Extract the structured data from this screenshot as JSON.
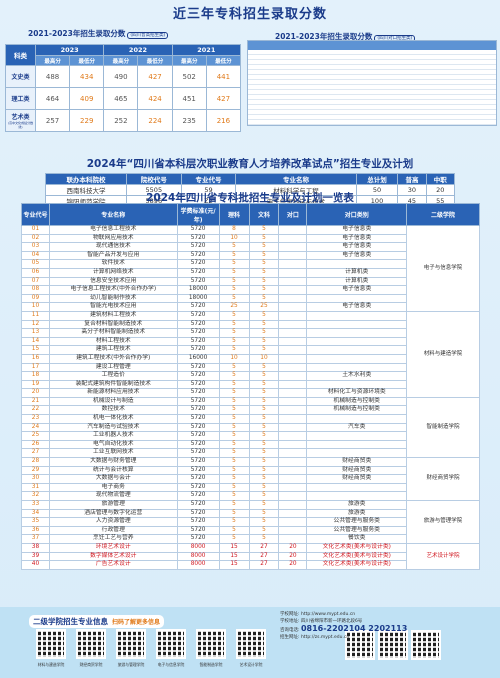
{
  "header": {
    "main_title": "近三年专科招生录取分数",
    "left_sub": "2021-2023年招生录取分数",
    "left_tag": "(四川普高招生类)",
    "right_sub": "2021-2023年招生录取分数",
    "right_tag": "(四川对口招生类)"
  },
  "scores": {
    "col_subject": "科类",
    "years": [
      "2023",
      "2022",
      "2021"
    ],
    "sub_headers": [
      "最高分",
      "最低分",
      "最高分",
      "最低分",
      "最高分",
      "最低分"
    ],
    "rows": [
      {
        "label": "文史类",
        "note": "",
        "values": [
          "488",
          "434",
          "490",
          "427",
          "502",
          "441"
        ]
      },
      {
        "label": "理工类",
        "note": "",
        "values": [
          "464",
          "409",
          "465",
          "424",
          "451",
          "427"
        ]
      },
      {
        "label": "艺术类",
        "note": "(高中文化成绩分数线)",
        "values": [
          "257",
          "229",
          "252",
          "224",
          "235",
          "216"
        ]
      }
    ]
  },
  "pilot": {
    "section_title": "2024年“四川省本科层次职业教育人才培养改革试点”招生专业及计划",
    "headers": [
      "联办本科院校",
      "院校代号",
      "专业代号",
      "专业名称",
      "总计划",
      "普高",
      "中职"
    ],
    "rows": [
      [
        "西南科技大学",
        "5505",
        "59",
        "材料科学与工程",
        "50",
        "30",
        "20"
      ],
      [
        "锦阳师范学院",
        "5896",
        "Z2",
        "电子信息科学与技术",
        "100",
        "45",
        "55"
      ]
    ]
  },
  "plan": {
    "section_title": "2024年四川省专科批招生专业及计划一览表",
    "headers": [
      "专业代号",
      "专业名称",
      "学费标准(元/年)",
      "理科",
      "文科",
      "对口",
      "对口类别",
      "二级学院"
    ],
    "rows": [
      [
        "01",
        "电子信息工程技术",
        "5720",
        "8",
        "5",
        "",
        "电子信息类"
      ],
      [
        "02",
        "物联网应用技术",
        "5720",
        "10",
        "5",
        "",
        "电子信息类"
      ],
      [
        "03",
        "现代通信技术",
        "5720",
        "5",
        "5",
        "",
        "电子信息类"
      ],
      [
        "04",
        "智能产品开发与应用",
        "5720",
        "5",
        "5",
        "",
        "电子信息类"
      ],
      [
        "05",
        "软件技术",
        "5720",
        "5",
        "5",
        "",
        ""
      ],
      [
        "06",
        "计算机网络技术",
        "5720",
        "5",
        "5",
        "",
        "计算机类"
      ],
      [
        "07",
        "信息安全技术应用",
        "5720",
        "5",
        "5",
        "",
        "计算机类"
      ],
      [
        "08",
        "电子信息工程技术(中外合作办学)",
        "18000",
        "5",
        "5",
        "",
        "电子信息类"
      ],
      [
        "09",
        "幼儿智能制作技术",
        "18000",
        "5",
        "5",
        "",
        ""
      ],
      [
        "10",
        "智能光电技术应用",
        "5720",
        "25",
        "25",
        "",
        "电子信息类"
      ],
      [
        "11",
        "建筑材料工程技术",
        "5720",
        "5",
        "5",
        "",
        ""
      ],
      [
        "12",
        "复合材料智能制造技术",
        "5720",
        "5",
        "5",
        "",
        ""
      ],
      [
        "13",
        "高分子材料智能制造技术",
        "5720",
        "5",
        "5",
        "",
        ""
      ],
      [
        "14",
        "材料工程技术",
        "5720",
        "5",
        "5",
        "",
        ""
      ],
      [
        "15",
        "建筑工程技术",
        "5720",
        "5",
        "5",
        "",
        ""
      ],
      [
        "16",
        "建筑工程技术(中外合作办学)",
        "16000",
        "10",
        "10",
        "",
        ""
      ],
      [
        "17",
        "建设工程管理",
        "5720",
        "5",
        "5",
        "",
        ""
      ],
      [
        "18",
        "工程造价",
        "5720",
        "5",
        "5",
        "",
        "土木水利类"
      ],
      [
        "19",
        "装配式建筑构件智能制造技术",
        "5720",
        "5",
        "5",
        "",
        ""
      ],
      [
        "20",
        "新能源材料应用技术",
        "5720",
        "5",
        "5",
        "",
        "材料化工与资源环境类"
      ],
      [
        "21",
        "机械设计与制造",
        "5720",
        "5",
        "5",
        "",
        "机械制造与控制类"
      ],
      [
        "22",
        "数控技术",
        "5720",
        "5",
        "5",
        "",
        "机械制造与控制类"
      ],
      [
        "23",
        "机电一体化技术",
        "5720",
        "5",
        "5",
        "",
        ""
      ],
      [
        "24",
        "汽车制造与试验技术",
        "5720",
        "5",
        "5",
        "",
        "汽车类"
      ],
      [
        "25",
        "工业机器人技术",
        "5720",
        "5",
        "5",
        "",
        ""
      ],
      [
        "26",
        "电气自动化技术",
        "5720",
        "5",
        "5",
        "",
        ""
      ],
      [
        "27",
        "工业互联网技术",
        "5720",
        "5",
        "5",
        "",
        ""
      ],
      [
        "28",
        "大数据与财务管理",
        "5720",
        "5",
        "5",
        "",
        "财经商贸类"
      ],
      [
        "29",
        "统计与会计核算",
        "5720",
        "5",
        "5",
        "",
        "财经商贸类"
      ],
      [
        "30",
        "大数据与会计",
        "5720",
        "5",
        "5",
        "",
        "财经商贸类"
      ],
      [
        "31",
        "电子商务",
        "5720",
        "5",
        "5",
        "",
        ""
      ],
      [
        "32",
        "现代物流管理",
        "5720",
        "5",
        "5",
        "",
        ""
      ],
      [
        "33",
        "旅游管理",
        "5720",
        "5",
        "5",
        "",
        "旅游类"
      ],
      [
        "34",
        "酒店管理与数字化运营",
        "5720",
        "5",
        "5",
        "",
        "旅游类"
      ],
      [
        "35",
        "人力资源管理",
        "5720",
        "5",
        "5",
        "",
        "公共管理与服务类"
      ],
      [
        "36",
        "行政管理",
        "5720",
        "5",
        "5",
        "",
        "公共管理与服务类"
      ],
      [
        "37",
        "烹饪工艺与营养",
        "5720",
        "5",
        "5",
        "",
        "餐饮类"
      ],
      [
        "38",
        "环境艺术设计",
        "8000",
        "15",
        "27",
        "20",
        "文化艺术类(美术与设计类)"
      ],
      [
        "39",
        "数字媒体艺术设计",
        "8000",
        "15",
        "27",
        "20",
        "文化艺术类(美术与设计类)"
      ],
      [
        "40",
        "广告艺术设计",
        "8000",
        "15",
        "27",
        "20",
        "文化艺术类(美术与设计类)"
      ]
    ],
    "colleges": [
      {
        "name": "电子与信息学院",
        "rows": 10
      },
      {
        "name": "材料与建造学院",
        "rows": 10
      },
      {
        "name": "智能制造学院",
        "rows": 7
      },
      {
        "name": "财经商贸学院",
        "rows": 5
      },
      {
        "name": "旅游与管理学院",
        "rows": 5
      },
      {
        "name": "艺术设计学院",
        "rows": 3
      }
    ]
  },
  "footer": {
    "info_title": "二级学院招生专业信息",
    "scan_hint": "扫码了解更多信息",
    "qr_labels": [
      "材料与建造学院",
      "财经商贸学院",
      "旅游与管理学院",
      "电子与信息学院",
      "智能制造学院",
      "艺术设计学院"
    ],
    "site_label": "学校网址:",
    "site": "http://www.mypt.edu.cn",
    "address": "学校地址: 四川省绵阳市新一环路北段6号",
    "phone_label": "咨询电话:",
    "phone": "0816-2202104  2202113",
    "admission_site": "招生网址: http://zs.mypt.edu.cn"
  },
  "colors": {
    "primary": "#2a63b5",
    "accent": "#e07a1a",
    "red": "#d0161e",
    "bg": "#dfeef9"
  }
}
